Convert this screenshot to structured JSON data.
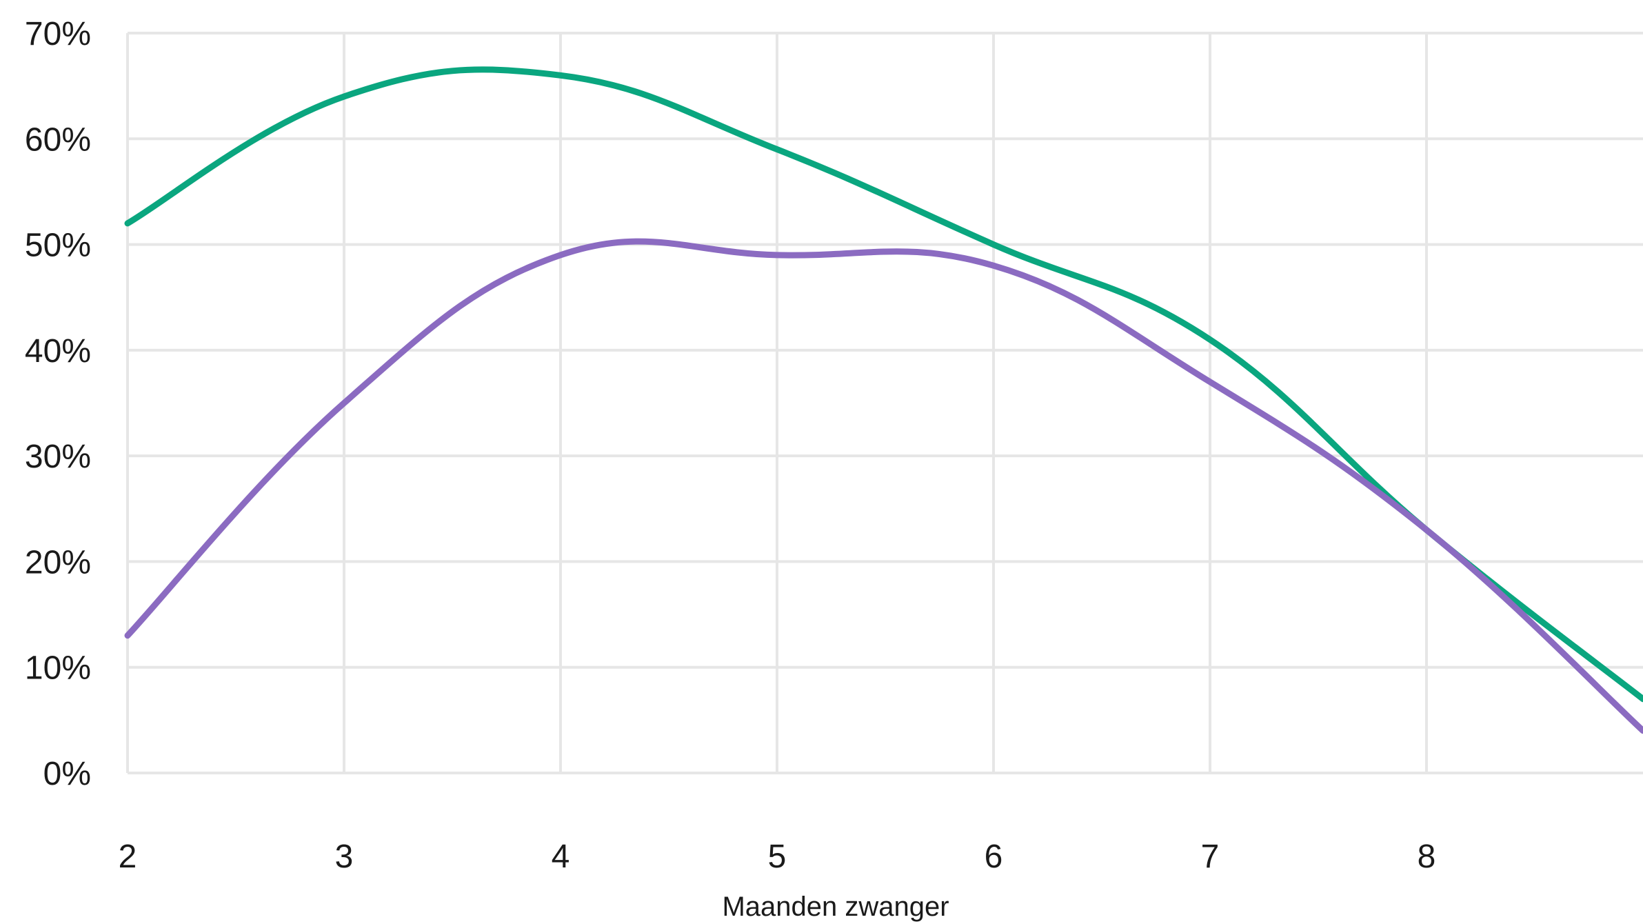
{
  "chart_data": {
    "type": "line",
    "title": "",
    "xlabel": "Maanden zwanger",
    "ylabel": "",
    "x": [
      2,
      3,
      4,
      5,
      6,
      7,
      8,
      9
    ],
    "x_tick_labels": [
      "2",
      "3",
      "4",
      "5",
      "6",
      "7",
      "8"
    ],
    "xlim": [
      2,
      9
    ],
    "y_tick_labels": [
      "0%",
      "10%",
      "20%",
      "30%",
      "40%",
      "50%",
      "60%",
      "70%"
    ],
    "y_ticks": [
      0,
      10,
      20,
      30,
      40,
      50,
      60,
      70
    ],
    "ylim": [
      0,
      70
    ],
    "grid": true,
    "legend": "none",
    "series": [
      {
        "color": "#0aa67f",
        "values": [
          52,
          64,
          66,
          59,
          50,
          41,
          23,
          7
        ]
      },
      {
        "color": "#8b6bc1",
        "values": [
          13,
          35,
          49,
          49,
          48,
          37,
          23,
          4
        ]
      }
    ]
  }
}
